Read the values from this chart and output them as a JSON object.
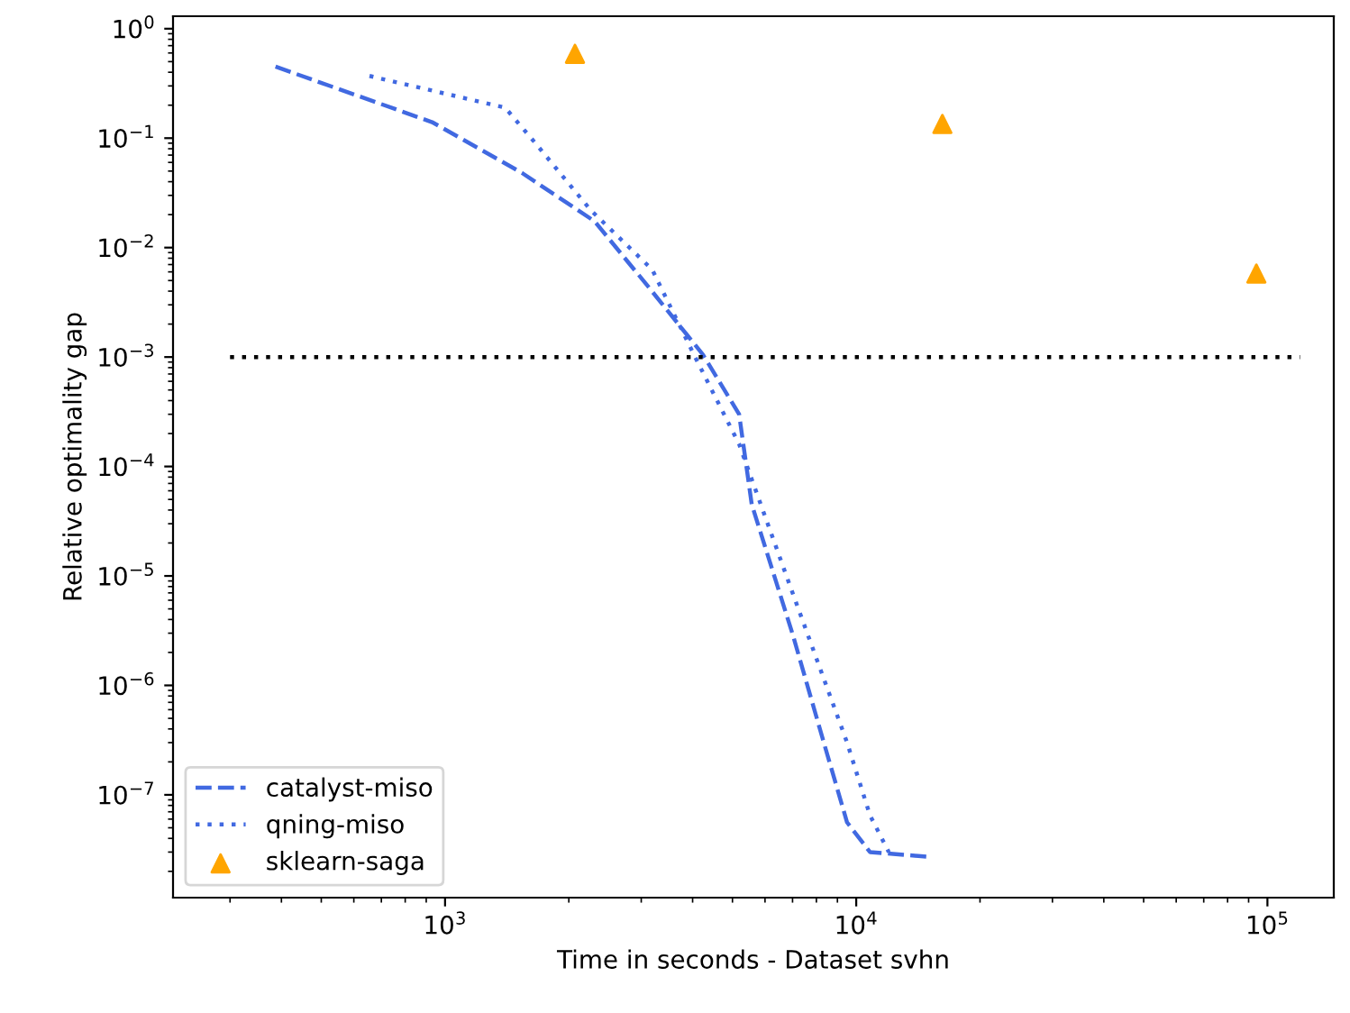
{
  "chart_data": {
    "type": "line",
    "xlabel": "Time in seconds - Dataset svhn",
    "ylabel": "Relative optimality gap",
    "log": "xy",
    "xlim": [
      218,
      145000
    ],
    "ylim": [
      1.15e-08,
      1.3
    ],
    "xticks": [
      {
        "value": 1000,
        "label": "10$^{3}$"
      },
      {
        "value": 10000,
        "label": "10$^{4}$"
      },
      {
        "value": 100000,
        "label": "10$^{5}$"
      }
    ],
    "yticks": [
      {
        "value": 1e-07,
        "label": "10$^{−7}$"
      },
      {
        "value": 1e-06,
        "label": "10$^{−6}$"
      },
      {
        "value": 1e-05,
        "label": "10$^{−5}$"
      },
      {
        "value": 0.0001,
        "label": "10$^{−4}$"
      },
      {
        "value": 0.001,
        "label": "10$^{−3}$"
      },
      {
        "value": 0.01,
        "label": "10$^{−2}$"
      },
      {
        "value": 0.1,
        "label": "10$^{−1}$"
      },
      {
        "value": 1,
        "label": "10$^{0}$"
      }
    ],
    "grid": false,
    "legend": "bottom left",
    "series": [
      {
        "name": "catalyst-miso",
        "line_style": "dashed",
        "marker": "none",
        "color": "#4169e1",
        "x": [
          387,
          930,
          1540,
          2310,
          3135,
          4240,
          5190,
          5570,
          7010,
          8340,
          9500,
          10800,
          15300
        ],
        "values": [
          0.45,
          0.14,
          0.048,
          0.0174,
          0.0043,
          0.00105,
          0.0003,
          4.5e-05,
          2.9e-06,
          3e-07,
          5.6e-08,
          3e-08,
          2.7e-08
        ]
      },
      {
        "name": "qning-miso",
        "line_style": "dotted",
        "marker": "none",
        "color": "#4169e1",
        "x": [
          655,
          1400,
          1620,
          2260,
          3190,
          4030,
          5190,
          7010,
          9500,
          10800,
          12000
        ],
        "values": [
          0.37,
          0.19,
          0.1,
          0.022,
          0.0063,
          0.00105,
          0.00016,
          6.9e-06,
          3e-07,
          6.5e-08,
          3e-08
        ]
      },
      {
        "name": "sklearn-saga",
        "type": "scatter",
        "marker": "triangle",
        "color": "#ffa500",
        "x": [
          2070,
          16200,
          94000
        ],
        "values": [
          0.59,
          0.135,
          0.0058
        ]
      },
      {
        "type": "line",
        "line_style": "dotted",
        "marker": "none",
        "color": "#000000",
        "x": [
          300,
          120000
        ],
        "values": [
          0.001,
          0.001
        ]
      }
    ]
  }
}
